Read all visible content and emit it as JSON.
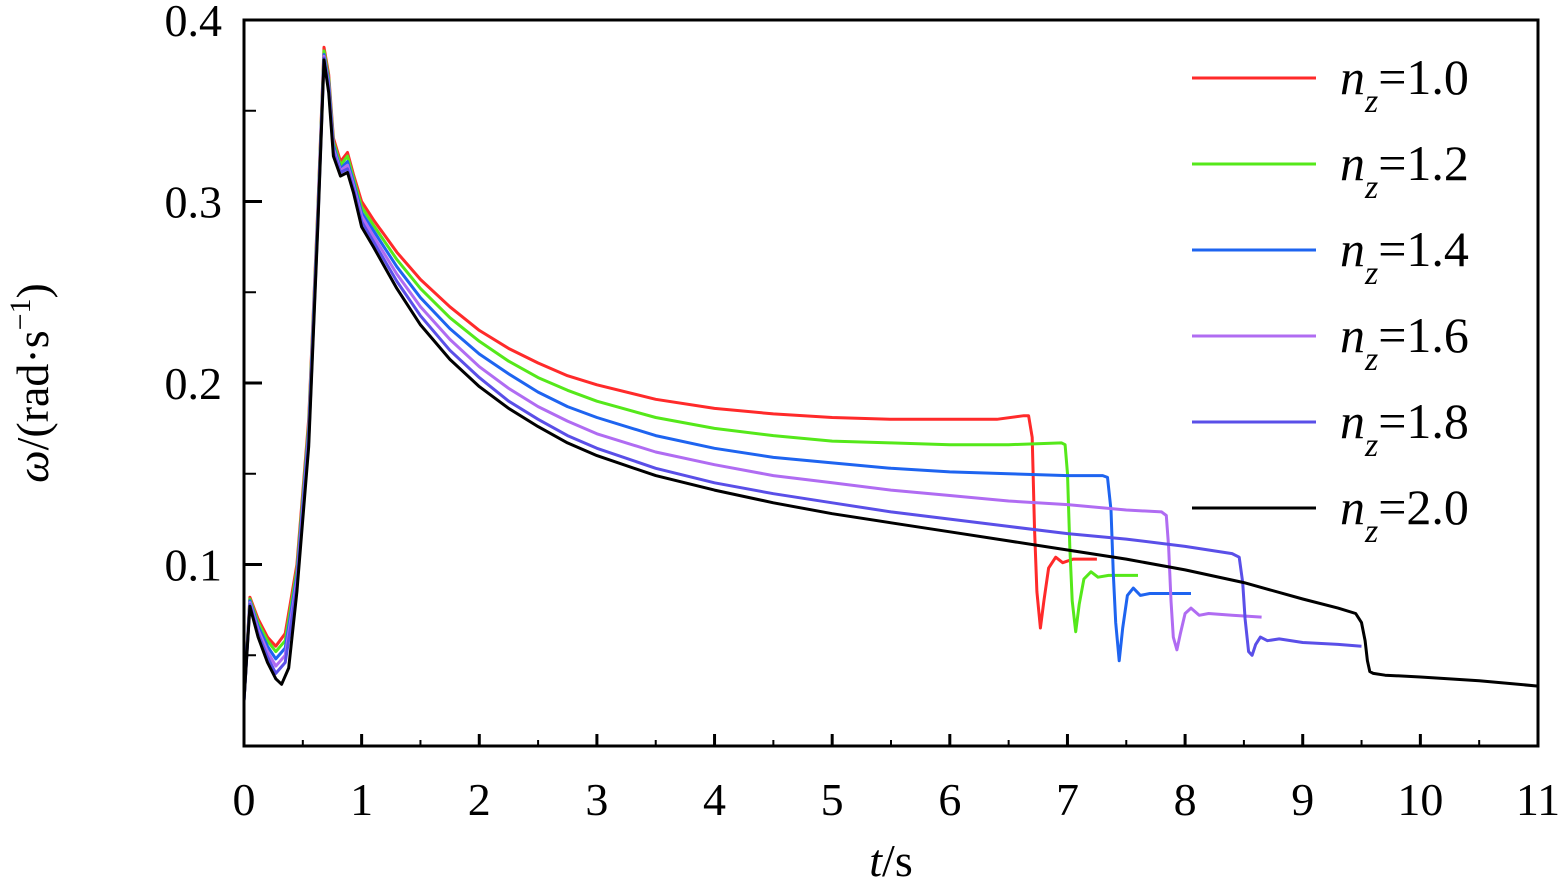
{
  "chart_data": {
    "type": "line",
    "xlabel": {
      "var": "t",
      "unit": "/s"
    },
    "ylabel": {
      "var": "ω",
      "unit": "/(rad·s",
      "sup": "−1",
      "close": ")"
    },
    "xlim": [
      0,
      11
    ],
    "ylim": [
      0,
      0.4
    ],
    "x_ticks": [
      "0",
      "1",
      "2",
      "3",
      "4",
      "5",
      "6",
      "7",
      "8",
      "9",
      "10",
      "11"
    ],
    "y_ticks": [
      "0.1",
      "0.2",
      "0.3",
      "0.4"
    ],
    "legend_position": "top-right",
    "series": [
      {
        "name": "1.0",
        "legend_var": "n",
        "legend_sub": "z",
        "color": "#ff2a2a",
        "points": [
          [
            0,
            0.025
          ],
          [
            0.05,
            0.082
          ],
          [
            0.12,
            0.07
          ],
          [
            0.2,
            0.06
          ],
          [
            0.27,
            0.055
          ],
          [
            0.35,
            0.062
          ],
          [
            0.45,
            0.1
          ],
          [
            0.55,
            0.18
          ],
          [
            0.63,
            0.3
          ],
          [
            0.68,
            0.385
          ],
          [
            0.72,
            0.37
          ],
          [
            0.76,
            0.335
          ],
          [
            0.82,
            0.322
          ],
          [
            0.88,
            0.327
          ],
          [
            0.93,
            0.315
          ],
          [
            1.0,
            0.3
          ],
          [
            1.1,
            0.29
          ],
          [
            1.3,
            0.272
          ],
          [
            1.5,
            0.257
          ],
          [
            1.75,
            0.242
          ],
          [
            2.0,
            0.229
          ],
          [
            2.25,
            0.219
          ],
          [
            2.5,
            0.211
          ],
          [
            2.75,
            0.204
          ],
          [
            3.0,
            0.199
          ],
          [
            3.5,
            0.191
          ],
          [
            4.0,
            0.186
          ],
          [
            4.5,
            0.183
          ],
          [
            5.0,
            0.181
          ],
          [
            5.5,
            0.18
          ],
          [
            6.0,
            0.18
          ],
          [
            6.4,
            0.18
          ],
          [
            6.63,
            0.182
          ],
          [
            6.67,
            0.182
          ],
          [
            6.7,
            0.17
          ],
          [
            6.72,
            0.12
          ],
          [
            6.74,
            0.085
          ],
          [
            6.77,
            0.065
          ],
          [
            6.8,
            0.08
          ],
          [
            6.84,
            0.098
          ],
          [
            6.9,
            0.104
          ],
          [
            6.96,
            0.101
          ],
          [
            7.05,
            0.103
          ],
          [
            7.15,
            0.103
          ],
          [
            7.25,
            0.103
          ]
        ]
      },
      {
        "name": "1.2",
        "legend_var": "n",
        "legend_sub": "z",
        "color": "#55e81a",
        "points": [
          [
            0,
            0.025
          ],
          [
            0.05,
            0.081
          ],
          [
            0.12,
            0.068
          ],
          [
            0.2,
            0.058
          ],
          [
            0.27,
            0.052
          ],
          [
            0.35,
            0.058
          ],
          [
            0.45,
            0.097
          ],
          [
            0.55,
            0.177
          ],
          [
            0.63,
            0.298
          ],
          [
            0.68,
            0.383
          ],
          [
            0.72,
            0.368
          ],
          [
            0.76,
            0.333
          ],
          [
            0.82,
            0.32
          ],
          [
            0.88,
            0.325
          ],
          [
            0.93,
            0.313
          ],
          [
            1.0,
            0.297
          ],
          [
            1.1,
            0.287
          ],
          [
            1.3,
            0.268
          ],
          [
            1.5,
            0.252
          ],
          [
            1.75,
            0.236
          ],
          [
            2.0,
            0.223
          ],
          [
            2.25,
            0.212
          ],
          [
            2.5,
            0.203
          ],
          [
            2.75,
            0.196
          ],
          [
            3.0,
            0.19
          ],
          [
            3.5,
            0.181
          ],
          [
            4.0,
            0.175
          ],
          [
            4.5,
            0.171
          ],
          [
            5.0,
            0.168
          ],
          [
            5.5,
            0.167
          ],
          [
            6.0,
            0.166
          ],
          [
            6.5,
            0.166
          ],
          [
            6.95,
            0.167
          ],
          [
            6.98,
            0.166
          ],
          [
            7.0,
            0.15
          ],
          [
            7.02,
            0.11
          ],
          [
            7.04,
            0.08
          ],
          [
            7.07,
            0.063
          ],
          [
            7.1,
            0.078
          ],
          [
            7.14,
            0.092
          ],
          [
            7.2,
            0.096
          ],
          [
            7.26,
            0.093
          ],
          [
            7.35,
            0.094
          ],
          [
            7.5,
            0.094
          ],
          [
            7.6,
            0.094
          ]
        ]
      },
      {
        "name": "1.4",
        "legend_var": "n",
        "legend_sub": "z",
        "color": "#1e64f0",
        "points": [
          [
            0,
            0.025
          ],
          [
            0.05,
            0.08
          ],
          [
            0.12,
            0.066
          ],
          [
            0.2,
            0.055
          ],
          [
            0.27,
            0.048
          ],
          [
            0.35,
            0.054
          ],
          [
            0.45,
            0.094
          ],
          [
            0.55,
            0.174
          ],
          [
            0.63,
            0.296
          ],
          [
            0.68,
            0.381
          ],
          [
            0.72,
            0.366
          ],
          [
            0.76,
            0.331
          ],
          [
            0.82,
            0.318
          ],
          [
            0.88,
            0.322
          ],
          [
            0.93,
            0.311
          ],
          [
            1.0,
            0.294
          ],
          [
            1.1,
            0.284
          ],
          [
            1.3,
            0.264
          ],
          [
            1.5,
            0.247
          ],
          [
            1.75,
            0.23
          ],
          [
            2.0,
            0.216
          ],
          [
            2.25,
            0.205
          ],
          [
            2.5,
            0.195
          ],
          [
            2.75,
            0.187
          ],
          [
            3.0,
            0.181
          ],
          [
            3.5,
            0.171
          ],
          [
            4.0,
            0.164
          ],
          [
            4.5,
            0.159
          ],
          [
            5.0,
            0.156
          ],
          [
            5.5,
            0.153
          ],
          [
            6.0,
            0.151
          ],
          [
            6.5,
            0.15
          ],
          [
            7.0,
            0.149
          ],
          [
            7.3,
            0.149
          ],
          [
            7.34,
            0.148
          ],
          [
            7.37,
            0.13
          ],
          [
            7.39,
            0.095
          ],
          [
            7.41,
            0.068
          ],
          [
            7.44,
            0.047
          ],
          [
            7.47,
            0.065
          ],
          [
            7.51,
            0.083
          ],
          [
            7.56,
            0.087
          ],
          [
            7.62,
            0.083
          ],
          [
            7.7,
            0.084
          ],
          [
            7.85,
            0.084
          ],
          [
            8.05,
            0.084
          ]
        ]
      },
      {
        "name": "1.6",
        "legend_var": "n",
        "legend_sub": "z",
        "color": "#b06cf2",
        "points": [
          [
            0,
            0.025
          ],
          [
            0.05,
            0.079
          ],
          [
            0.12,
            0.064
          ],
          [
            0.2,
            0.052
          ],
          [
            0.27,
            0.044
          ],
          [
            0.35,
            0.05
          ],
          [
            0.45,
            0.091
          ],
          [
            0.55,
            0.171
          ],
          [
            0.63,
            0.294
          ],
          [
            0.68,
            0.38
          ],
          [
            0.72,
            0.364
          ],
          [
            0.76,
            0.329
          ],
          [
            0.82,
            0.317
          ],
          [
            0.88,
            0.32
          ],
          [
            0.93,
            0.309
          ],
          [
            1.0,
            0.292
          ],
          [
            1.1,
            0.281
          ],
          [
            1.3,
            0.26
          ],
          [
            1.5,
            0.242
          ],
          [
            1.75,
            0.224
          ],
          [
            2.0,
            0.209
          ],
          [
            2.25,
            0.197
          ],
          [
            2.5,
            0.187
          ],
          [
            2.75,
            0.179
          ],
          [
            3.0,
            0.172
          ],
          [
            3.5,
            0.162
          ],
          [
            4.0,
            0.155
          ],
          [
            4.5,
            0.149
          ],
          [
            5.0,
            0.145
          ],
          [
            5.5,
            0.141
          ],
          [
            6.0,
            0.138
          ],
          [
            6.5,
            0.135
          ],
          [
            7.0,
            0.133
          ],
          [
            7.5,
            0.13
          ],
          [
            7.8,
            0.129
          ],
          [
            7.84,
            0.127
          ],
          [
            7.86,
            0.11
          ],
          [
            7.88,
            0.08
          ],
          [
            7.9,
            0.06
          ],
          [
            7.93,
            0.053
          ],
          [
            7.96,
            0.062
          ],
          [
            8.0,
            0.073
          ],
          [
            8.05,
            0.076
          ],
          [
            8.12,
            0.072
          ],
          [
            8.2,
            0.073
          ],
          [
            8.4,
            0.072
          ],
          [
            8.65,
            0.071
          ]
        ]
      },
      {
        "name": "1.8",
        "legend_var": "n",
        "legend_sub": "z",
        "color": "#5a4fe8",
        "points": [
          [
            0,
            0.025
          ],
          [
            0.05,
            0.078
          ],
          [
            0.12,
            0.062
          ],
          [
            0.2,
            0.049
          ],
          [
            0.27,
            0.04
          ],
          [
            0.35,
            0.046
          ],
          [
            0.45,
            0.088
          ],
          [
            0.55,
            0.168
          ],
          [
            0.63,
            0.292
          ],
          [
            0.68,
            0.379
          ],
          [
            0.72,
            0.362
          ],
          [
            0.76,
            0.327
          ],
          [
            0.82,
            0.316
          ],
          [
            0.88,
            0.318
          ],
          [
            0.93,
            0.307
          ],
          [
            1.0,
            0.289
          ],
          [
            1.1,
            0.278
          ],
          [
            1.3,
            0.256
          ],
          [
            1.5,
            0.237
          ],
          [
            1.75,
            0.218
          ],
          [
            2.0,
            0.203
          ],
          [
            2.25,
            0.19
          ],
          [
            2.5,
            0.18
          ],
          [
            2.75,
            0.171
          ],
          [
            3.0,
            0.164
          ],
          [
            3.5,
            0.153
          ],
          [
            4.0,
            0.145
          ],
          [
            4.5,
            0.139
          ],
          [
            5.0,
            0.134
          ],
          [
            5.5,
            0.129
          ],
          [
            6.0,
            0.125
          ],
          [
            6.5,
            0.121
          ],
          [
            7.0,
            0.117
          ],
          [
            7.5,
            0.114
          ],
          [
            8.0,
            0.11
          ],
          [
            8.4,
            0.106
          ],
          [
            8.46,
            0.104
          ],
          [
            8.49,
            0.09
          ],
          [
            8.51,
            0.07
          ],
          [
            8.54,
            0.052
          ],
          [
            8.57,
            0.05
          ],
          [
            8.6,
            0.056
          ],
          [
            8.64,
            0.06
          ],
          [
            8.7,
            0.058
          ],
          [
            8.8,
            0.059
          ],
          [
            9.0,
            0.057
          ],
          [
            9.3,
            0.056
          ],
          [
            9.5,
            0.055
          ]
        ]
      },
      {
        "name": "2.0",
        "legend_var": "n",
        "legend_sub": "z",
        "color": "#000000",
        "points": [
          [
            0,
            0.025
          ],
          [
            0.05,
            0.077
          ],
          [
            0.12,
            0.06
          ],
          [
            0.2,
            0.046
          ],
          [
            0.27,
            0.037
          ],
          [
            0.32,
            0.034
          ],
          [
            0.38,
            0.043
          ],
          [
            0.45,
            0.085
          ],
          [
            0.55,
            0.165
          ],
          [
            0.63,
            0.29
          ],
          [
            0.68,
            0.378
          ],
          [
            0.72,
            0.36
          ],
          [
            0.76,
            0.325
          ],
          [
            0.82,
            0.314
          ],
          [
            0.88,
            0.316
          ],
          [
            0.93,
            0.305
          ],
          [
            1.0,
            0.286
          ],
          [
            1.1,
            0.275
          ],
          [
            1.3,
            0.252
          ],
          [
            1.5,
            0.232
          ],
          [
            1.75,
            0.213
          ],
          [
            2.0,
            0.198
          ],
          [
            2.25,
            0.186
          ],
          [
            2.5,
            0.176
          ],
          [
            2.75,
            0.167
          ],
          [
            3.0,
            0.16
          ],
          [
            3.5,
            0.149
          ],
          [
            4.0,
            0.141
          ],
          [
            4.5,
            0.134
          ],
          [
            5.0,
            0.128
          ],
          [
            5.5,
            0.123
          ],
          [
            6.0,
            0.118
          ],
          [
            6.5,
            0.113
          ],
          [
            7.0,
            0.108
          ],
          [
            7.5,
            0.103
          ],
          [
            8.0,
            0.097
          ],
          [
            8.5,
            0.09
          ],
          [
            9.0,
            0.081
          ],
          [
            9.3,
            0.076
          ],
          [
            9.45,
            0.073
          ],
          [
            9.5,
            0.068
          ],
          [
            9.53,
            0.058
          ],
          [
            9.55,
            0.047
          ],
          [
            9.57,
            0.041
          ],
          [
            9.6,
            0.04
          ],
          [
            9.7,
            0.039
          ],
          [
            10.0,
            0.038
          ],
          [
            10.5,
            0.036
          ],
          [
            11.0,
            0.033
          ]
        ]
      }
    ]
  }
}
